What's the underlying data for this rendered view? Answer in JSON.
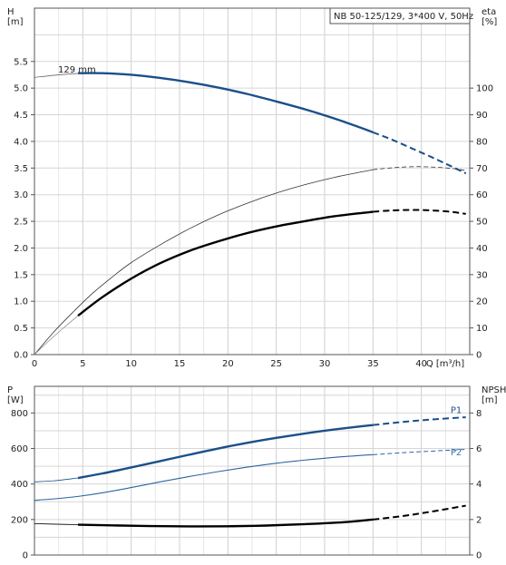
{
  "chart_data": [
    {
      "type": "line",
      "panel": "top",
      "title": "NB 50-125/129, 3*400 V, 50Hz",
      "curve_label": "129 mm",
      "x_axis": {
        "label": "Q [m³/h]",
        "range": [
          0,
          45
        ],
        "ticks": [
          "0",
          "5",
          "10",
          "15",
          "20",
          "25",
          "30",
          "35",
          "40"
        ],
        "tick_values": [
          0,
          5,
          10,
          15,
          20,
          25,
          30,
          35,
          40
        ]
      },
      "y_left": {
        "label": "H",
        "unit": "[m]",
        "range": [
          0,
          6.5
        ],
        "ticks": [
          "0.0",
          "0.5",
          "1.0",
          "1.5",
          "2.0",
          "2.5",
          "3.0",
          "3.5",
          "4.0",
          "4.5",
          "5.0",
          "5.5"
        ],
        "tick_values": [
          0,
          0.5,
          1.0,
          1.5,
          2.0,
          2.5,
          3.0,
          3.5,
          4.0,
          4.5,
          5.0,
          5.5
        ]
      },
      "y_right": {
        "label": "eta",
        "unit": "[%]",
        "range": [
          0,
          130
        ],
        "ticks": [
          "0",
          "10",
          "20",
          "30",
          "40",
          "50",
          "60",
          "70",
          "80",
          "90",
          "100"
        ],
        "tick_values": [
          0,
          10,
          20,
          30,
          40,
          50,
          60,
          70,
          80,
          90,
          100
        ]
      },
      "grid": true,
      "series": [
        {
          "id": "H-thin",
          "axis": "left",
          "color": "#6a6a6a",
          "width": 0.8,
          "style": "solid",
          "x": [
            0,
            2,
            4,
            6,
            8,
            10
          ],
          "y": [
            5.2,
            5.24,
            5.27,
            5.28,
            5.28,
            5.26
          ]
        },
        {
          "id": "H-solid",
          "axis": "left",
          "color": "#1b4f8a",
          "width": 2.4,
          "style": "solid",
          "x": [
            4.5,
            7,
            10,
            13,
            16,
            19,
            22,
            25,
            28,
            31,
            34,
            35
          ],
          "y": [
            5.28,
            5.28,
            5.25,
            5.19,
            5.11,
            5.01,
            4.89,
            4.75,
            4.6,
            4.43,
            4.24,
            4.17
          ]
        },
        {
          "id": "H-dash",
          "axis": "left",
          "color": "#1b4f8a",
          "width": 2.0,
          "style": "dash",
          "x": [
            35,
            37,
            39,
            41,
            43,
            44.6
          ],
          "y": [
            4.17,
            4.03,
            3.87,
            3.71,
            3.54,
            3.4
          ]
        },
        {
          "id": "eta-full-thin",
          "axis": "right",
          "color": "#333333",
          "width": 0.8,
          "style": "solid",
          "x": [
            0,
            2,
            4,
            6,
            8,
            10,
            13,
            16,
            19,
            22,
            25,
            28,
            31,
            34,
            35
          ],
          "y": [
            0,
            8.5,
            16,
            23,
            29,
            34.5,
            41.2,
            47.2,
            52.4,
            56.8,
            60.6,
            63.8,
            66.5,
            68.7,
            69.4
          ]
        },
        {
          "id": "eta-full-thin-dash",
          "axis": "right",
          "color": "#333333",
          "width": 0.8,
          "style": "dash",
          "x": [
            35,
            37,
            39,
            41,
            43,
            44.6
          ],
          "y": [
            69.4,
            70.1,
            70.5,
            70.4,
            69.9,
            69.1
          ]
        },
        {
          "id": "eta-low-thin",
          "axis": "right",
          "color": "#8a8a8a",
          "width": 0.7,
          "style": "solid",
          "x": [
            0,
            1,
            2,
            3,
            4.5
          ],
          "y": [
            0,
            3.5,
            6.8,
            10,
            14.6
          ]
        },
        {
          "id": "eta-solid",
          "axis": "right",
          "color": "#000000",
          "width": 2.4,
          "style": "solid",
          "x": [
            4.5,
            7,
            10,
            13,
            16,
            19,
            22,
            25,
            28,
            31,
            34,
            35
          ],
          "y": [
            14.6,
            21.5,
            28.5,
            34.3,
            38.9,
            42.5,
            45.6,
            48.1,
            50.1,
            51.9,
            53.2,
            53.6
          ]
        },
        {
          "id": "eta-dash",
          "axis": "right",
          "color": "#000000",
          "width": 2.0,
          "style": "dash",
          "x": [
            35,
            37,
            39,
            41,
            43,
            44.6
          ],
          "y": [
            53.6,
            54.1,
            54.3,
            54.1,
            53.6,
            52.8
          ]
        }
      ]
    },
    {
      "type": "line",
      "panel": "bottom",
      "x_axis": {
        "range": [
          0,
          45
        ]
      },
      "y_left": {
        "label": "P",
        "unit": "[W]",
        "range": [
          0,
          950
        ],
        "ticks": [
          "0",
          "200",
          "400",
          "600",
          "800"
        ],
        "tick_values": [
          0,
          200,
          400,
          600,
          800
        ]
      },
      "y_right": {
        "label": "NPSH",
        "unit": "[m]",
        "range": [
          0,
          9.5
        ],
        "ticks": [
          "0",
          "2",
          "4",
          "6",
          "8"
        ],
        "tick_values": [
          0,
          2,
          4,
          6,
          8
        ]
      },
      "grid": true,
      "series_labels": [
        {
          "text": "P1",
          "x": 43.6,
          "y": 800,
          "axis": "left",
          "color": "#1b4f8a"
        },
        {
          "text": "P2",
          "x": 43.6,
          "y": 563,
          "axis": "left",
          "color": "#3a74b0"
        }
      ],
      "series": [
        {
          "id": "P1-thin",
          "name": "P1",
          "axis": "left",
          "color": "#1b4f8a",
          "width": 0.8,
          "style": "solid",
          "x": [
            0,
            2,
            4.5
          ],
          "y": [
            412,
            418,
            434
          ]
        },
        {
          "id": "P1-solid",
          "name": "P1",
          "axis": "left",
          "color": "#1b4f8a",
          "width": 2.4,
          "style": "solid",
          "x": [
            4.5,
            7,
            10,
            13,
            16,
            19,
            22,
            25,
            28,
            31,
            34,
            35
          ],
          "y": [
            434,
            459,
            493,
            529,
            565,
            600,
            632,
            660,
            685,
            707,
            726,
            732
          ]
        },
        {
          "id": "P1-dash",
          "name": "P1",
          "axis": "left",
          "color": "#1b4f8a",
          "width": 2.0,
          "style": "dash",
          "x": [
            35,
            38,
            41,
            44.6
          ],
          "y": [
            732,
            749,
            763,
            776
          ]
        },
        {
          "id": "P2-solid",
          "name": "P2",
          "axis": "left",
          "color": "#2d64a3",
          "width": 1.1,
          "style": "solid",
          "x": [
            0,
            2,
            4.5,
            7,
            10,
            13,
            16,
            19,
            22,
            25,
            28,
            31,
            34,
            35
          ],
          "y": [
            308,
            316,
            330,
            350,
            380,
            412,
            442,
            470,
            495,
            517,
            535,
            550,
            562,
            565
          ]
        },
        {
          "id": "P2-dash",
          "name": "P2",
          "axis": "left",
          "color": "#2d64a3",
          "width": 1.0,
          "style": "dash",
          "x": [
            35,
            38,
            41,
            44.6
          ],
          "y": [
            565,
            576,
            585,
            595
          ]
        },
        {
          "id": "NPSH-thin",
          "axis": "right",
          "color": "#000000",
          "width": 0.8,
          "style": "solid",
          "x": [
            0,
            2,
            4.5
          ],
          "y": [
            1.77,
            1.74,
            1.71
          ]
        },
        {
          "id": "NPSH-solid",
          "axis": "right",
          "color": "#000000",
          "width": 2.4,
          "style": "solid",
          "x": [
            4.5,
            8,
            12,
            16,
            20,
            24,
            28,
            32,
            35
          ],
          "y": [
            1.71,
            1.67,
            1.63,
            1.61,
            1.62,
            1.66,
            1.74,
            1.85,
            2.0
          ]
        },
        {
          "id": "NPSH-dash",
          "axis": "right",
          "color": "#000000",
          "width": 2.0,
          "style": "dash",
          "x": [
            35,
            38,
            41,
            44.6
          ],
          "y": [
            2.0,
            2.19,
            2.44,
            2.78
          ]
        }
      ]
    }
  ]
}
